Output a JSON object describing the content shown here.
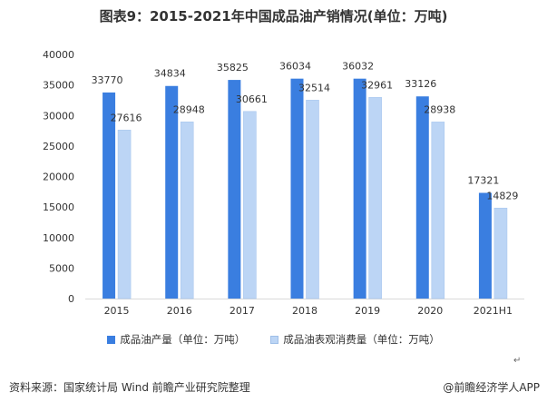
{
  "title": "图表9：2015-2021年中国成品油产销情况(单位：万吨)",
  "chart_data": {
    "type": "bar",
    "categories": [
      "2015",
      "2016",
      "2017",
      "2018",
      "2019",
      "2020",
      "2021H1"
    ],
    "series": [
      {
        "name": "成品油产量（单位：万吨）",
        "values": [
          33770,
          34834,
          35825,
          36034,
          36032,
          33126,
          17321
        ],
        "color": "#3a7ee0"
      },
      {
        "name": "成品油表观消费量（单位：万吨）",
        "values": [
          27616,
          28948,
          30661,
          32514,
          32961,
          28938,
          14829
        ],
        "color": "#bcd5f5"
      }
    ],
    "yticks": [
      0,
      5000,
      10000,
      15000,
      20000,
      25000,
      30000,
      35000,
      40000
    ],
    "ylim": [
      0,
      40000
    ]
  },
  "legend": {
    "item1": "成品油产量（单位：万吨）",
    "item2": "成品油表观消费量（单位：万吨）"
  },
  "footer": {
    "source": "资料来源：国家统计局 Wind 前瞻产业研究院整理",
    "brand": "@前瞻经济学人APP"
  },
  "colors": {
    "primary": "#3a7ee0",
    "secondary": "#bcd5f5",
    "axis": "#d9d9d9"
  }
}
